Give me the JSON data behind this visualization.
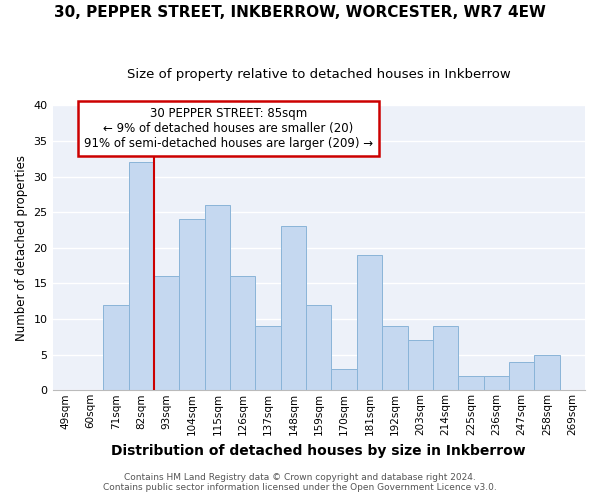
{
  "title": "30, PEPPER STREET, INKBERROW, WORCESTER, WR7 4EW",
  "subtitle": "Size of property relative to detached houses in Inkberrow",
  "xlabel": "Distribution of detached houses by size in Inkberrow",
  "ylabel": "Number of detached properties",
  "bar_labels": [
    "49sqm",
    "60sqm",
    "71sqm",
    "82sqm",
    "93sqm",
    "104sqm",
    "115sqm",
    "126sqm",
    "137sqm",
    "148sqm",
    "159sqm",
    "170sqm",
    "181sqm",
    "192sqm",
    "203sqm",
    "214sqm",
    "225sqm",
    "236sqm",
    "247sqm",
    "258sqm",
    "269sqm"
  ],
  "bar_values": [
    0,
    0,
    12,
    32,
    16,
    24,
    26,
    16,
    9,
    23,
    12,
    3,
    19,
    9,
    7,
    9,
    2,
    2,
    4,
    5,
    0
  ],
  "bar_color": "#c5d8f0",
  "bar_edge_color": "#8ab4d8",
  "property_line_label": "30 PEPPER STREET: 85sqm",
  "annotation_line1": "← 9% of detached houses are smaller (20)",
  "annotation_line2": "91% of semi-detached houses are larger (209) →",
  "annotation_box_color": "#ffffff",
  "annotation_box_edge": "#cc0000",
  "line_color": "#cc0000",
  "ylim": [
    0,
    40
  ],
  "yticks": [
    0,
    5,
    10,
    15,
    20,
    25,
    30,
    35,
    40
  ],
  "footer1": "Contains HM Land Registry data © Crown copyright and database right 2024.",
  "footer2": "Contains public sector information licensed under the Open Government Licence v3.0.",
  "bg_color": "#edf1f9",
  "title_fontsize": 11,
  "subtitle_fontsize": 9.5,
  "xlabel_fontsize": 10,
  "ylabel_fontsize": 8.5,
  "annotation_fontsize": 8.5,
  "footer_fontsize": 6.5
}
